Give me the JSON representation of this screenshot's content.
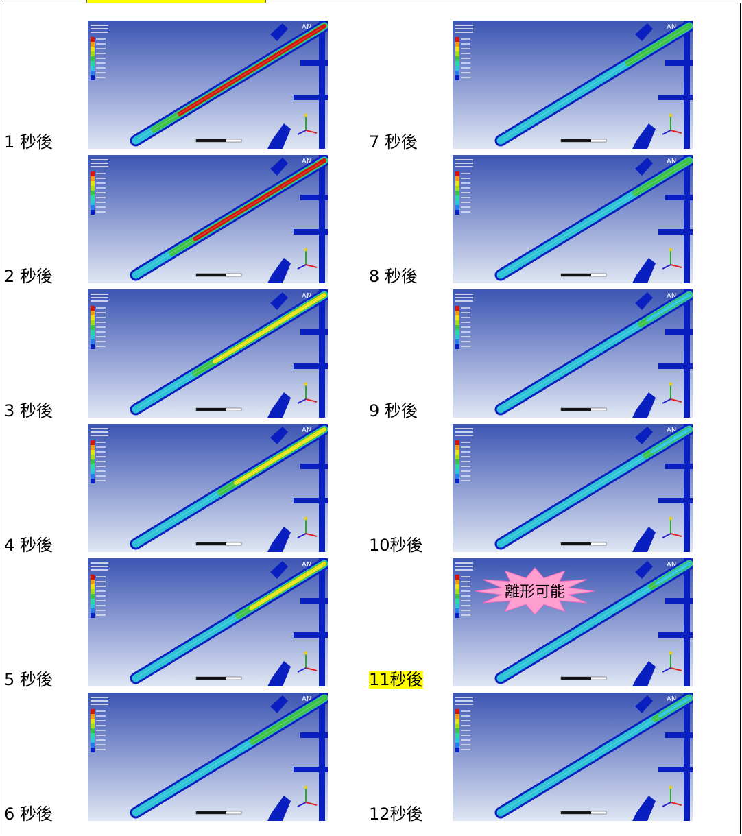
{
  "frames": [
    {
      "label": "1 秒後",
      "level": 0.95,
      "highlight": false,
      "note": ""
    },
    {
      "label": "2 秒後",
      "level": 0.85,
      "highlight": false,
      "note": ""
    },
    {
      "label": "3 秒後",
      "level": 0.72,
      "highlight": false,
      "note": ""
    },
    {
      "label": "4 秒後",
      "level": 0.58,
      "highlight": false,
      "note": ""
    },
    {
      "label": "5 秒後",
      "level": 0.48,
      "highlight": false,
      "note": ""
    },
    {
      "label": "6 秒後",
      "level": 0.4,
      "highlight": false,
      "note": ""
    },
    {
      "label": "7 秒後",
      "level": 0.34,
      "highlight": false,
      "note": ""
    },
    {
      "label": "8 秒後",
      "level": 0.3,
      "highlight": false,
      "note": ""
    },
    {
      "label": "9 秒後",
      "level": 0.27,
      "highlight": false,
      "note": ""
    },
    {
      "label": "10秒後",
      "level": 0.24,
      "highlight": false,
      "note": ""
    },
    {
      "label": "11秒後",
      "level": 0.21,
      "highlight": true,
      "note": "離形可能"
    },
    {
      "label": "12秒後",
      "level": 0.19,
      "highlight": false,
      "note": ""
    }
  ],
  "panel_brand": "AN",
  "colors": {
    "background_top": "#3d55b3",
    "background_bottom": "#dfe6f3",
    "frame_blue": "#0a1fc0",
    "hot_red": "#d4140c",
    "warm_yellow": "#e6e21a",
    "mid_green": "#3fc24a",
    "cool_cyan": "#2ec3d6",
    "note_pink": "#ff9fd0",
    "label_highlight": "#ffff00"
  }
}
